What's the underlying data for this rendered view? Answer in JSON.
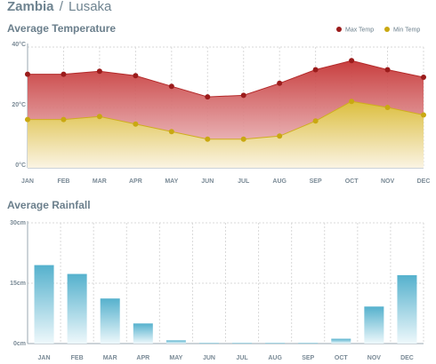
{
  "header": {
    "country": "Zambia",
    "separator": "/",
    "city": "Lusaka"
  },
  "colors": {
    "max_temp": "#c53434",
    "min_temp": "#dcc23a",
    "max_point": "#9b1c1c",
    "min_point": "#c9a812",
    "rain": "#5ab4cf",
    "grid": "#d9d9d9",
    "text": "#6b7f8c"
  },
  "chart_data": [
    {
      "type": "area",
      "title": "Average Temperature",
      "categories": [
        "JAN",
        "FEB",
        "MAR",
        "APR",
        "MAY",
        "JUN",
        "JUL",
        "AUG",
        "SEP",
        "OCT",
        "NOV",
        "DEC"
      ],
      "y_ticks": [
        "40°C",
        "20°C",
        "0°C"
      ],
      "ylim": [
        0,
        40
      ],
      "unit": "°C",
      "legend_position": "top-right",
      "grid": true,
      "series": [
        {
          "name": "Max Temp",
          "values": [
            31,
            31,
            32,
            30.5,
            27,
            23.5,
            24,
            28,
            32.5,
            35.5,
            32.5,
            30
          ]
        },
        {
          "name": "Min Temp",
          "values": [
            16,
            16,
            17,
            14.5,
            12,
            9.5,
            9.5,
            10.5,
            15.5,
            22,
            20,
            17.5
          ]
        }
      ]
    },
    {
      "type": "bar",
      "title": "Average Rainfall",
      "categories": [
        "JAN",
        "FEB",
        "MAR",
        "APR",
        "MAY",
        "JUN",
        "JUL",
        "AUG",
        "SEP",
        "OCT",
        "NOV",
        "DEC"
      ],
      "y_ticks": [
        "30cm",
        "15cm",
        "0cm"
      ],
      "ylim": [
        0,
        30
      ],
      "unit": "cm",
      "grid": true,
      "values": [
        19.5,
        17.3,
        11.2,
        5.0,
        0.8,
        0.1,
        0.1,
        0.1,
        0.1,
        1.2,
        9.2,
        17.0
      ]
    }
  ]
}
